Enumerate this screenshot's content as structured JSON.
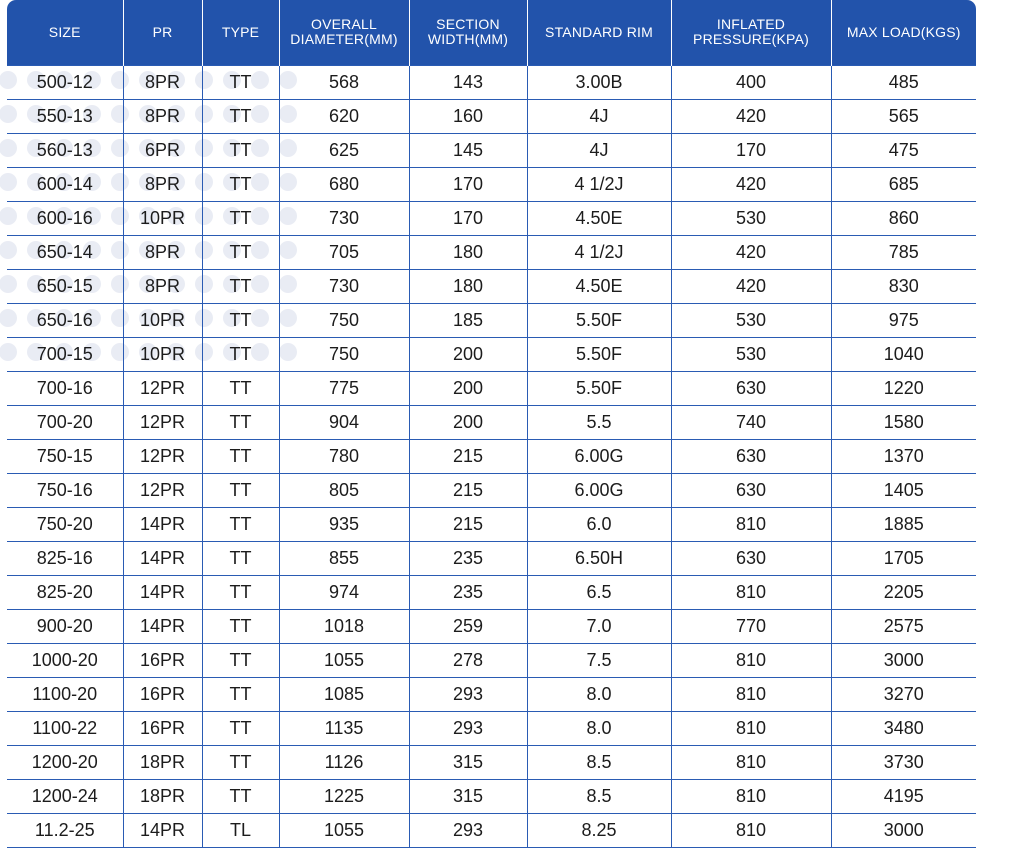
{
  "table": {
    "columns": [
      {
        "line1": "SIZE",
        "line2": ""
      },
      {
        "line1": "PR",
        "line2": ""
      },
      {
        "line1": "TYPE",
        "line2": ""
      },
      {
        "line1": "OVERALL",
        "line2": "DIAMETER(MM)"
      },
      {
        "line1": "SECTION",
        "line2": "WIDTH(MM)"
      },
      {
        "line1": "STANDARD RIM",
        "line2": ""
      },
      {
        "line1": "INFLATED",
        "line2": "PRESSURE(KPA)"
      },
      {
        "line1": "MAX LOAD(KGS)",
        "line2": ""
      }
    ],
    "rows": [
      [
        "500-12",
        "8PR",
        "TT",
        "568",
        "143",
        "3.00B",
        "400",
        "485"
      ],
      [
        "550-13",
        "8PR",
        "TT",
        "620",
        "160",
        "4J",
        "420",
        "565"
      ],
      [
        "560-13",
        "6PR",
        "TT",
        "625",
        "145",
        "4J",
        "170",
        "475"
      ],
      [
        "600-14",
        "8PR",
        "TT",
        "680",
        "170",
        "4 1/2J",
        "420",
        "685"
      ],
      [
        "600-16",
        "10PR",
        "TT",
        "730",
        "170",
        "4.50E",
        "530",
        "860"
      ],
      [
        "650-14",
        "8PR",
        "TT",
        "705",
        "180",
        "4 1/2J",
        "420",
        "785"
      ],
      [
        "650-15",
        "8PR",
        "TT",
        "730",
        "180",
        "4.50E",
        "420",
        "830"
      ],
      [
        "650-16",
        "10PR",
        "TT",
        "750",
        "185",
        "5.50F",
        "530",
        "975"
      ],
      [
        "700-15",
        "10PR",
        "TT",
        "750",
        "200",
        "5.50F",
        "530",
        "1040"
      ],
      [
        "700-16",
        "12PR",
        "TT",
        "775",
        "200",
        "5.50F",
        "630",
        "1220"
      ],
      [
        "700-20",
        "12PR",
        "TT",
        "904",
        "200",
        "5.5",
        "740",
        "1580"
      ],
      [
        "750-15",
        "12PR",
        "TT",
        "780",
        "215",
        "6.00G",
        "630",
        "1370"
      ],
      [
        "750-16",
        "12PR",
        "TT",
        "805",
        "215",
        "6.00G",
        "630",
        "1405"
      ],
      [
        "750-20",
        "14PR",
        "TT",
        "935",
        "215",
        "6.0",
        "810",
        "1885"
      ],
      [
        "825-16",
        "14PR",
        "TT",
        "855",
        "235",
        "6.50H",
        "630",
        "1705"
      ],
      [
        "825-20",
        "14PR",
        "TT",
        "974",
        "235",
        "6.5",
        "810",
        "2205"
      ],
      [
        "900-20",
        "14PR",
        "TT",
        "1018",
        "259",
        "7.0",
        "770",
        "2575"
      ],
      [
        "1000-20",
        "16PR",
        "TT",
        "1055",
        "278",
        "7.5",
        "810",
        "3000"
      ],
      [
        "1100-20",
        "16PR",
        "TT",
        "1085",
        "293",
        "8.0",
        "810",
        "3270"
      ],
      [
        "1100-22",
        "16PR",
        "TT",
        "1135",
        "293",
        "8.0",
        "810",
        "3480"
      ],
      [
        "1200-20",
        "18PR",
        "TT",
        "1126",
        "315",
        "8.5",
        "810",
        "3730"
      ],
      [
        "1200-24",
        "18PR",
        "TT",
        "1225",
        "315",
        "8.5",
        "810",
        "4195"
      ],
      [
        "11.2-25",
        "14PR",
        "TL",
        "1055",
        "293",
        "8.25",
        "810",
        "3000"
      ]
    ]
  },
  "colors": {
    "header_background": "#2253ab",
    "header_text": "#ffffff",
    "grid_line": "#2a5bb3",
    "cell_text": "#1c1c1c",
    "dot_pattern": "#e9ecf4"
  }
}
